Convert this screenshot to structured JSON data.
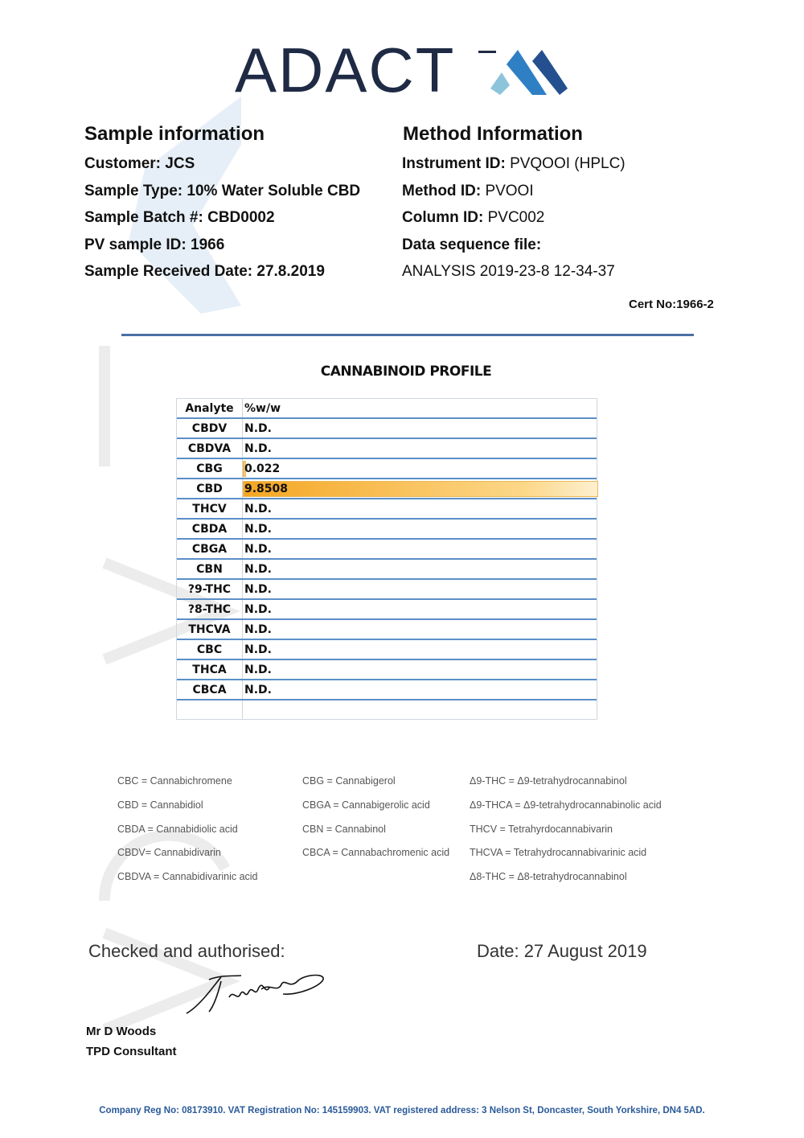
{
  "logo": {
    "text": "ADACT",
    "colors": [
      "#8cc4dc",
      "#2f7fc4",
      "#24508f"
    ]
  },
  "sample": {
    "title": "Sample information",
    "lines": [
      {
        "label": "Customer:",
        "value": "JCS"
      },
      {
        "label": "Sample Type:",
        "value": "10% Water Soluble CBD"
      },
      {
        "label": "Sample Batch #:",
        "value": "CBD0002"
      },
      {
        "label": "PV sample ID:",
        "value": "1966"
      },
      {
        "label": "Sample Received Date:",
        "value": "27.8.2019"
      }
    ]
  },
  "method": {
    "title": "Method Information",
    "lines": [
      {
        "label": "Instrument ID:",
        "value": "PVQOOI (HPLC)"
      },
      {
        "label": "Method ID:",
        "value": "PVOOI"
      },
      {
        "label": "Column ID:",
        "value": "PVC002"
      },
      {
        "label": "Data sequence file:",
        "value": ""
      },
      {
        "label": "",
        "value": "ANALYSIS 2019-23-8 12-34-37"
      }
    ]
  },
  "cert": "Cert No:1966-2",
  "profile": {
    "title": "CANNABINOID  PROFILE",
    "headers": [
      "Analyte",
      "%w/w"
    ],
    "rows": [
      {
        "analyte": "CBDV",
        "value": "N.D."
      },
      {
        "analyte": "CBDVA",
        "value": "N.D."
      },
      {
        "analyte": "CBG",
        "value": "0.022",
        "bar": 0.022
      },
      {
        "analyte": "CBD",
        "value": "9.8508",
        "bar": 9.8508
      },
      {
        "analyte": "THCV",
        "value": "N.D."
      },
      {
        "analyte": "CBDA",
        "value": "N.D."
      },
      {
        "analyte": "CBGA",
        "value": "N.D."
      },
      {
        "analyte": "CBN",
        "value": "N.D."
      },
      {
        "analyte": "?9-THC",
        "value": "N.D."
      },
      {
        "analyte": "?8-THC",
        "value": "N.D."
      },
      {
        "analyte": "THCVA",
        "value": "N.D."
      },
      {
        "analyte": "CBC",
        "value": "N.D."
      },
      {
        "analyte": "THCA",
        "value": "N.D."
      },
      {
        "analyte": "CBCA",
        "value": "N.D."
      }
    ],
    "bar_color": "#f5a623"
  },
  "legend": [
    [
      "CBC = Cannabichromene",
      "CBD = Cannabidiol",
      "CBDA = Cannabidiolic acid",
      "CBDV= Cannabidivarin",
      "CBDVA = Cannabidivarinic acid"
    ],
    [
      "CBG = Cannabigerol",
      "CBGA = Cannabigerolic acid",
      "CBN = Cannabinol",
      "CBCA = Cannabachromenic acid"
    ],
    [
      "Δ9-THC = Δ9-tetrahydrocannabinol",
      "Δ9-THCA  = Δ9-tetrahydrocannabinolic acid",
      "THCV = Tetrahyrdocannabivarin",
      "THCVA = Tetrahydrocannabivarinic acid",
      "Δ8-THC = Δ8-tetrahydrocannabinol"
    ]
  ],
  "signoff": {
    "checked": "Checked and authorised:",
    "date": "Date: 27 August 2019",
    "name": "Mr D Woods",
    "role": "TPD Consultant"
  },
  "footer": "Company Reg No: 08173910. VAT Registration No: 145159903. VAT registered address: 3 Nelson St, Doncaster, South Yorkshire, DN4 5AD."
}
